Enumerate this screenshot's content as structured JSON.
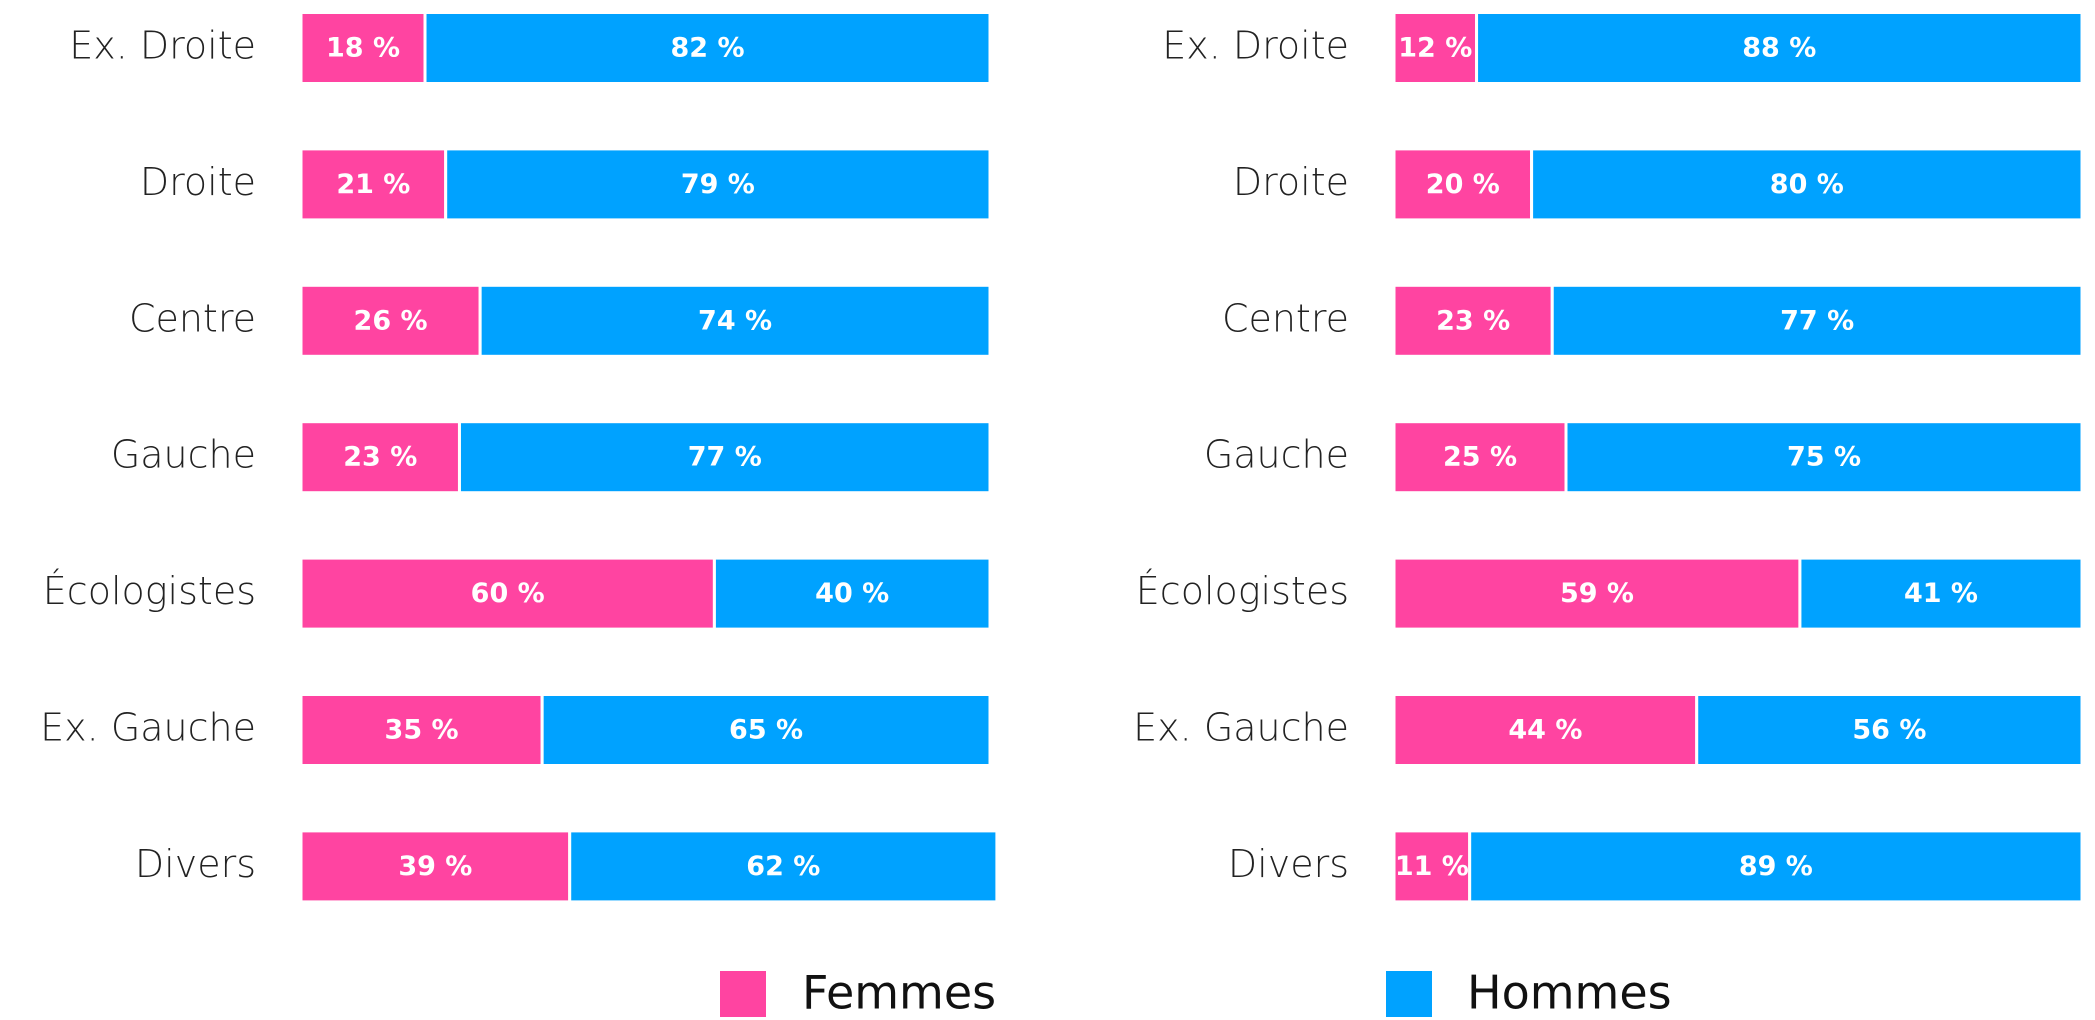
{
  "chart_data": [
    {
      "type": "bar",
      "orientation": "horizontal",
      "stacked": true,
      "categories": [
        "Ex. Droite",
        "Droite",
        "Centre",
        "Gauche",
        "Écologistes",
        "Ex. Gauche",
        "Divers"
      ],
      "xlim": [
        0,
        100
      ],
      "series": [
        {
          "color": "#ff44a1",
          "values": [
            18,
            21,
            26,
            23,
            60,
            35,
            39
          ],
          "value_labels": [
            "18 %",
            "21 %",
            "26 %",
            "23 %",
            "60 %",
            "35 %",
            "39 %"
          ]
        },
        {
          "color": "#00a2ff",
          "values": [
            82,
            79,
            74,
            77,
            40,
            65,
            62
          ],
          "value_labels": [
            "82 %",
            "79 %",
            "74 %",
            "77 %",
            "40 %",
            "65 %",
            "62 %"
          ]
        }
      ]
    },
    {
      "type": "bar",
      "orientation": "horizontal",
      "stacked": true,
      "categories": [
        "Ex. Droite",
        "Droite",
        "Centre",
        "Gauche",
        "Écologistes",
        "Ex. Gauche",
        "Divers"
      ],
      "xlim": [
        0,
        100
      ],
      "series": [
        {
          "color": "#ff44a1",
          "values": [
            12,
            20,
            23,
            25,
            59,
            44,
            11
          ],
          "value_labels": [
            "12 %",
            "20 %",
            "23 %",
            "25 %",
            "59 %",
            "44 %",
            "11 %"
          ]
        },
        {
          "color": "#00a2ff",
          "values": [
            88,
            80,
            77,
            75,
            41,
            56,
            89
          ],
          "value_labels": [
            "88 %",
            "80 %",
            "77 %",
            "75 %",
            "41 %",
            "56 %",
            "89 %"
          ]
        }
      ]
    }
  ],
  "legend": [
    {
      "name": "Femmes",
      "color": "#ff44a1"
    },
    {
      "name": "Hommes",
      "color": "#00a2ff"
    }
  ]
}
